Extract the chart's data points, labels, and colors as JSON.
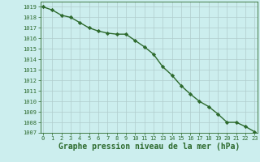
{
  "x": [
    0,
    1,
    2,
    3,
    4,
    5,
    6,
    7,
    8,
    9,
    10,
    11,
    12,
    13,
    14,
    15,
    16,
    17,
    18,
    19,
    20,
    21,
    22,
    23
  ],
  "y": [
    1019.0,
    1018.7,
    1018.2,
    1018.0,
    1017.5,
    1017.0,
    1016.7,
    1016.5,
    1016.4,
    1016.4,
    1015.8,
    1015.2,
    1014.5,
    1013.3,
    1012.5,
    1011.5,
    1010.7,
    1010.0,
    1009.5,
    1008.8,
    1008.0,
    1008.0,
    1007.6,
    1007.1
  ],
  "ylim": [
    1007,
    1019.5
  ],
  "xlim": [
    -0.3,
    23.3
  ],
  "yticks": [
    1007,
    1008,
    1009,
    1010,
    1011,
    1012,
    1013,
    1014,
    1015,
    1016,
    1017,
    1018,
    1019
  ],
  "xticks": [
    0,
    1,
    2,
    3,
    4,
    5,
    6,
    7,
    8,
    9,
    10,
    11,
    12,
    13,
    14,
    15,
    16,
    17,
    18,
    19,
    20,
    21,
    22,
    23
  ],
  "xlabel": "Graphe pression niveau de la mer (hPa)",
  "line_color": "#2d6a2d",
  "bg_color": "#cceeee",
  "grid_color": "#b0cccc",
  "marker": "D",
  "marker_size": 2.2,
  "line_width": 1.0,
  "tick_fontsize": 5.0,
  "xlabel_fontsize": 7.0,
  "xlabel_bold": true
}
